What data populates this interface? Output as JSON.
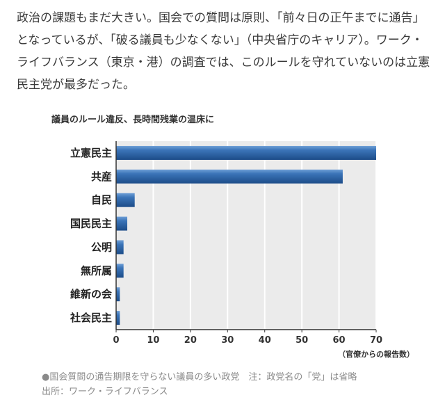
{
  "article": {
    "text": "政治の課題もまだ大きい。国会での質問は原則、「前々日の正午までに通告」となっているが、「破る議員も少なくない」（中央省庁のキャリア）。ワーク・ライフバランス（東京・港）の調査では、このルールを守れていないのは立憲民主党が最多だった。"
  },
  "chart_data": {
    "type": "bar",
    "orientation": "horizontal",
    "title": "議員のルール違反、長時間残業の温床に",
    "categories": [
      "立憲民主",
      "共産",
      "自民",
      "国民民主",
      "公明",
      "無所属",
      "維新の会",
      "社会民主"
    ],
    "values": [
      70,
      61,
      5,
      3,
      2,
      2,
      1,
      1
    ],
    "xlabel": "（官僚からの報告数）",
    "xlim": [
      0,
      70
    ],
    "xticks": [
      0,
      10,
      20,
      30,
      40,
      50,
      60,
      70
    ],
    "grid": true,
    "bar_color": "#2a5f9e"
  },
  "caption": {
    "line1": "●国会質問の通告期限を守らない議員の多い政党　注：政党名の「党」は省略",
    "line2": "出所：ワーク・ライフバランス"
  }
}
